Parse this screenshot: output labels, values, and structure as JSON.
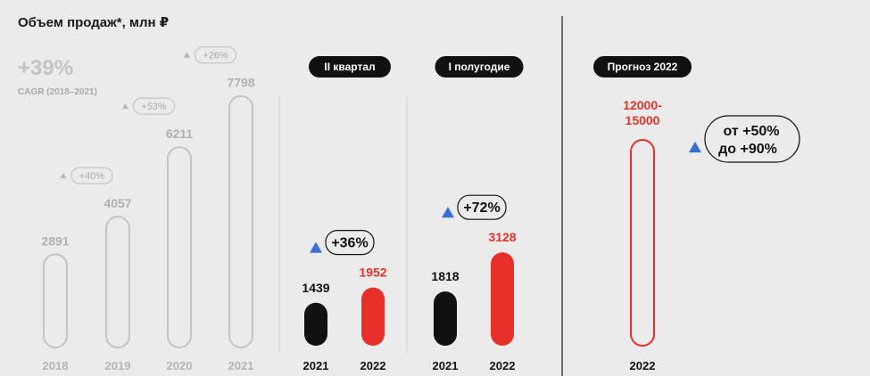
{
  "title": "Объем продаж*, млн ₽",
  "cagr": {
    "value": "+39%",
    "label": "CAGR (2018–2021)"
  },
  "colors": {
    "accent_red": "#e8302a",
    "black": "#111111",
    "grey": "#c4c4c4",
    "up_arrow": "#3a6fd1"
  },
  "chart_data": [
    {
      "type": "bar",
      "title": "",
      "categories": [
        "2018",
        "2019",
        "2020",
        "2021"
      ],
      "values": [
        2891,
        4057,
        6211,
        7798
      ],
      "value_labels": [
        "2891",
        "4057",
        "6211",
        "7798"
      ],
      "growth_labels": [
        "+40%",
        "+53%",
        "+26%"
      ],
      "style": "outline-grey"
    },
    {
      "type": "bar",
      "title": "II квартал",
      "categories": [
        "2021",
        "2022"
      ],
      "values": [
        1439,
        1952
      ],
      "value_labels": [
        "1439",
        "1952"
      ],
      "growth_label": "+36%"
    },
    {
      "type": "bar",
      "title": "I полугодие",
      "categories": [
        "2021",
        "2022"
      ],
      "values": [
        1818,
        3128
      ],
      "value_labels": [
        "1818",
        "3128"
      ],
      "growth_label": "+72%"
    },
    {
      "type": "bar",
      "title": "Прогноз 2022",
      "categories": [
        "2022"
      ],
      "values": [
        [
          12000,
          15000
        ]
      ],
      "value_label_lines": [
        "12000-",
        "15000"
      ],
      "growth_label_lines": [
        "от +50%",
        "до +90%"
      ],
      "style": "outline-red"
    }
  ]
}
